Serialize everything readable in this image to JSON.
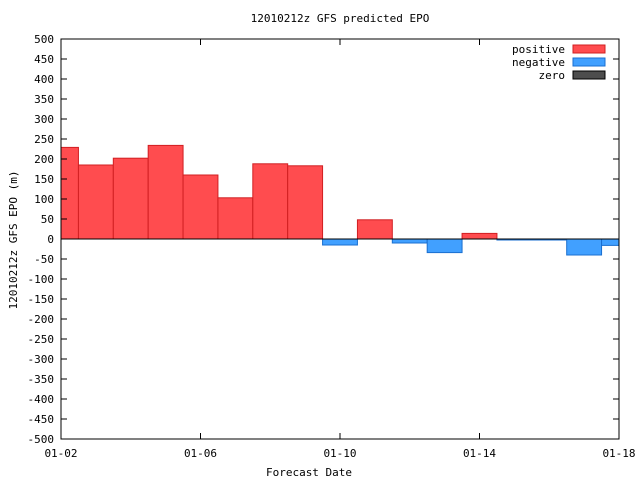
{
  "chart_data": {
    "type": "bar",
    "title": "12010212z GFS predicted EPO",
    "xlabel": "Forecast Date",
    "ylabel": "12010212z GFS EPO (m)",
    "ylim": [
      -500,
      500
    ],
    "yticks": [
      -500,
      -450,
      -400,
      -350,
      -300,
      -250,
      -200,
      -150,
      -100,
      -50,
      0,
      50,
      100,
      150,
      200,
      250,
      300,
      350,
      400,
      450,
      500
    ],
    "xlim_days": [
      0,
      16
    ],
    "xticks": [
      {
        "day": 0,
        "label": "01-02"
      },
      {
        "day": 4,
        "label": "01-06"
      },
      {
        "day": 8,
        "label": "01-10"
      },
      {
        "day": 12,
        "label": "01-14"
      },
      {
        "day": 16,
        "label": "01-18"
      }
    ],
    "bar_width_days": 1,
    "bars": [
      {
        "start_day": -0.5,
        "value": 229
      },
      {
        "start_day": 0.5,
        "value": 185
      },
      {
        "start_day": 1.5,
        "value": 202
      },
      {
        "start_day": 2.5,
        "value": 234
      },
      {
        "start_day": 3.5,
        "value": 160
      },
      {
        "start_day": 4.5,
        "value": 103
      },
      {
        "start_day": 5.5,
        "value": 188
      },
      {
        "start_day": 6.5,
        "value": 183
      },
      {
        "start_day": 7.5,
        "value": -15
      },
      {
        "start_day": 8.5,
        "value": 48
      },
      {
        "start_day": 9.5,
        "value": -10
      },
      {
        "start_day": 10.5,
        "value": -34
      },
      {
        "start_day": 11.5,
        "value": 14
      },
      {
        "start_day": 12.5,
        "value": -2
      },
      {
        "start_day": 13.5,
        "value": -2
      },
      {
        "start_day": 14.5,
        "value": -40
      },
      {
        "start_day": 15.5,
        "value": -16
      }
    ],
    "legend": {
      "placement": "top-right",
      "entries": [
        {
          "label": "positive",
          "fill": "#ff4c4f",
          "stroke": "#d11f22"
        },
        {
          "label": "negative",
          "fill": "#41a0ff",
          "stroke": "#1a6fd0"
        },
        {
          "label": "zero",
          "fill": "#4d4d4d",
          "stroke": "#000000"
        }
      ]
    },
    "grid": false
  }
}
